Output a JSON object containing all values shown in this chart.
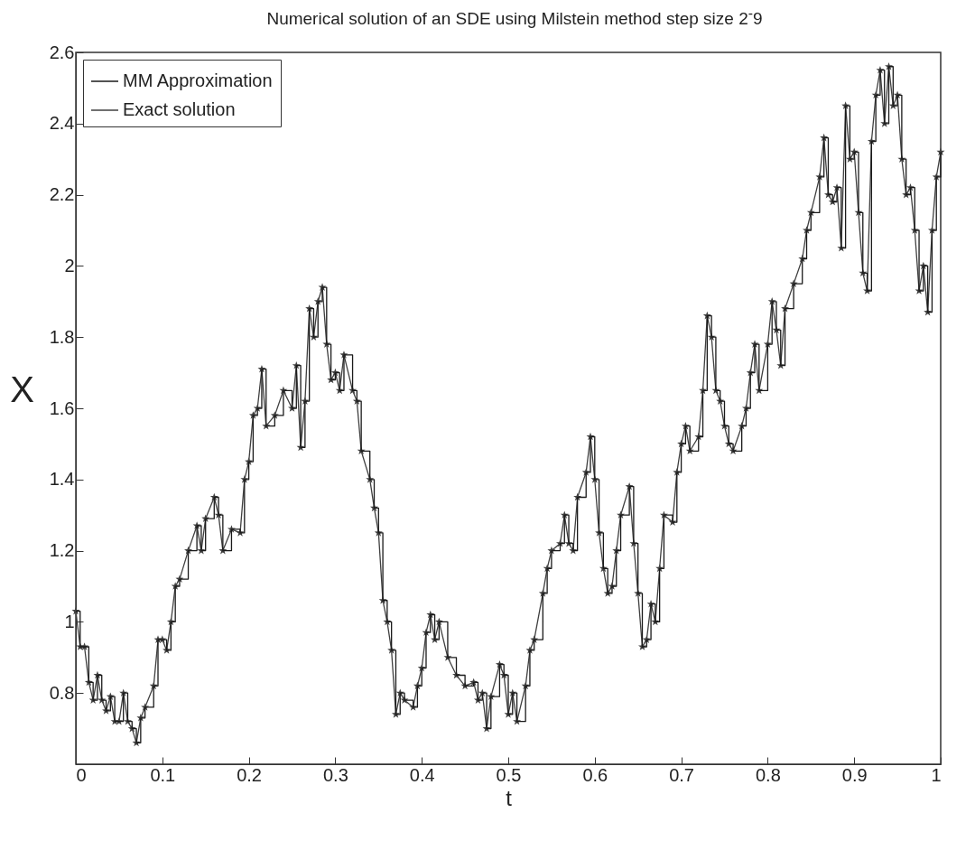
{
  "chart_data": {
    "type": "line",
    "title": "Numerical solution of an SDE using Milstein method step size 2$^{-}$9",
    "xlabel": "t",
    "ylabel": "X",
    "x": [
      0,
      0.005,
      0.01,
      0.015,
      0.02,
      0.025,
      0.03,
      0.035,
      0.04,
      0.045,
      0.05,
      0.055,
      0.06,
      0.065,
      0.07,
      0.075,
      0.08,
      0.09,
      0.095,
      0.1,
      0.105,
      0.11,
      0.115,
      0.12,
      0.13,
      0.14,
      0.145,
      0.15,
      0.16,
      0.165,
      0.17,
      0.18,
      0.19,
      0.195,
      0.2,
      0.205,
      0.21,
      0.215,
      0.22,
      0.23,
      0.24,
      0.25,
      0.255,
      0.26,
      0.265,
      0.27,
      0.275,
      0.28,
      0.285,
      0.29,
      0.295,
      0.3,
      0.305,
      0.31,
      0.32,
      0.325,
      0.33,
      0.34,
      0.345,
      0.35,
      0.355,
      0.36,
      0.365,
      0.37,
      0.375,
      0.38,
      0.39,
      0.395,
      0.4,
      0.405,
      0.41,
      0.415,
      0.42,
      0.43,
      0.44,
      0.45,
      0.46,
      0.465,
      0.47,
      0.475,
      0.48,
      0.49,
      0.495,
      0.5,
      0.505,
      0.51,
      0.52,
      0.525,
      0.53,
      0.54,
      0.545,
      0.55,
      0.56,
      0.565,
      0.57,
      0.575,
      0.58,
      0.59,
      0.595,
      0.6,
      0.605,
      0.61,
      0.615,
      0.62,
      0.625,
      0.63,
      0.64,
      0.645,
      0.65,
      0.655,
      0.66,
      0.665,
      0.67,
      0.675,
      0.68,
      0.69,
      0.695,
      0.7,
      0.705,
      0.71,
      0.72,
      0.725,
      0.73,
      0.735,
      0.74,
      0.745,
      0.75,
      0.755,
      0.76,
      0.77,
      0.775,
      0.78,
      0.785,
      0.79,
      0.8,
      0.805,
      0.81,
      0.815,
      0.82,
      0.83,
      0.84,
      0.845,
      0.85,
      0.86,
      0.865,
      0.87,
      0.875,
      0.88,
      0.885,
      0.89,
      0.895,
      0.9,
      0.905,
      0.91,
      0.915,
      0.92,
      0.925,
      0.93,
      0.935,
      0.94,
      0.945,
      0.95,
      0.955,
      0.96,
      0.965,
      0.97,
      0.975,
      0.98,
      0.985,
      0.99,
      0.995,
      1
    ],
    "series": [
      {
        "name": "MM Approximation",
        "type": "step",
        "color": "#1a1a1a",
        "marker": "none",
        "values": [
          1.03,
          0.93,
          0.93,
          0.83,
          0.78,
          0.85,
          0.78,
          0.75,
          0.79,
          0.72,
          0.72,
          0.8,
          0.72,
          0.7,
          0.66,
          0.73,
          0.76,
          0.82,
          0.95,
          0.95,
          0.92,
          1.0,
          1.1,
          1.12,
          1.2,
          1.27,
          1.2,
          1.29,
          1.35,
          1.3,
          1.2,
          1.26,
          1.25,
          1.4,
          1.45,
          1.58,
          1.6,
          1.71,
          1.55,
          1.58,
          1.65,
          1.6,
          1.72,
          1.49,
          1.62,
          1.88,
          1.8,
          1.9,
          1.94,
          1.78,
          1.68,
          1.7,
          1.65,
          1.75,
          1.65,
          1.62,
          1.48,
          1.4,
          1.32,
          1.25,
          1.06,
          1.0,
          0.92,
          0.74,
          0.8,
          0.78,
          0.76,
          0.82,
          0.87,
          0.97,
          1.02,
          0.95,
          1.0,
          0.9,
          0.85,
          0.82,
          0.83,
          0.78,
          0.8,
          0.7,
          0.79,
          0.88,
          0.85,
          0.74,
          0.8,
          0.72,
          0.82,
          0.92,
          0.95,
          1.08,
          1.15,
          1.2,
          1.22,
          1.3,
          1.22,
          1.2,
          1.35,
          1.42,
          1.52,
          1.4,
          1.25,
          1.15,
          1.08,
          1.1,
          1.2,
          1.3,
          1.38,
          1.22,
          1.08,
          0.93,
          0.95,
          1.05,
          1.0,
          1.15,
          1.3,
          1.28,
          1.42,
          1.5,
          1.55,
          1.48,
          1.52,
          1.65,
          1.86,
          1.8,
          1.65,
          1.62,
          1.55,
          1.5,
          1.48,
          1.55,
          1.6,
          1.7,
          1.78,
          1.65,
          1.78,
          1.9,
          1.82,
          1.72,
          1.88,
          1.95,
          2.02,
          2.1,
          2.15,
          2.25,
          2.36,
          2.2,
          2.18,
          2.22,
          2.05,
          2.45,
          2.3,
          2.32,
          2.15,
          1.98,
          1.93,
          2.35,
          2.48,
          2.55,
          2.4,
          2.56,
          2.45,
          2.48,
          2.3,
          2.2,
          2.22,
          2.1,
          1.93,
          2.0,
          1.87,
          2.1,
          2.25,
          2.32
        ]
      },
      {
        "name": "Exact solution",
        "color": "#404040",
        "marker": "star",
        "values": [
          1.03,
          0.93,
          0.93,
          0.83,
          0.78,
          0.85,
          0.78,
          0.75,
          0.79,
          0.72,
          0.72,
          0.8,
          0.72,
          0.7,
          0.66,
          0.73,
          0.76,
          0.82,
          0.95,
          0.95,
          0.92,
          1.0,
          1.1,
          1.12,
          1.2,
          1.27,
          1.2,
          1.29,
          1.35,
          1.3,
          1.2,
          1.26,
          1.25,
          1.4,
          1.45,
          1.58,
          1.6,
          1.71,
          1.55,
          1.58,
          1.65,
          1.6,
          1.72,
          1.49,
          1.62,
          1.88,
          1.8,
          1.9,
          1.94,
          1.78,
          1.68,
          1.7,
          1.65,
          1.75,
          1.65,
          1.62,
          1.48,
          1.4,
          1.32,
          1.25,
          1.06,
          1.0,
          0.92,
          0.74,
          0.8,
          0.78,
          0.76,
          0.82,
          0.87,
          0.97,
          1.02,
          0.95,
          1.0,
          0.9,
          0.85,
          0.82,
          0.83,
          0.78,
          0.8,
          0.7,
          0.79,
          0.88,
          0.85,
          0.74,
          0.8,
          0.72,
          0.82,
          0.92,
          0.95,
          1.08,
          1.15,
          1.2,
          1.22,
          1.3,
          1.22,
          1.2,
          1.35,
          1.42,
          1.52,
          1.4,
          1.25,
          1.15,
          1.08,
          1.1,
          1.2,
          1.3,
          1.38,
          1.22,
          1.08,
          0.93,
          0.95,
          1.05,
          1.0,
          1.15,
          1.3,
          1.28,
          1.42,
          1.5,
          1.55,
          1.48,
          1.52,
          1.65,
          1.86,
          1.8,
          1.65,
          1.62,
          1.55,
          1.5,
          1.48,
          1.55,
          1.6,
          1.7,
          1.78,
          1.65,
          1.78,
          1.9,
          1.82,
          1.72,
          1.88,
          1.95,
          2.02,
          2.1,
          2.15,
          2.25,
          2.36,
          2.2,
          2.18,
          2.22,
          2.05,
          2.45,
          2.3,
          2.32,
          2.15,
          1.98,
          1.93,
          2.35,
          2.48,
          2.55,
          2.4,
          2.56,
          2.45,
          2.48,
          2.3,
          2.2,
          2.22,
          2.1,
          1.93,
          2.0,
          1.87,
          2.1,
          2.25,
          2.32
        ]
      }
    ],
    "xlim": [
      0,
      1
    ],
    "xticks": [
      0,
      0.1,
      0.2,
      0.3,
      0.4,
      0.5,
      0.6,
      0.7,
      0.8,
      0.9,
      1
    ],
    "ylim": [
      0.6,
      2.6
    ],
    "yticks": [
      0.8,
      1,
      1.2,
      1.4,
      1.6,
      1.8,
      2,
      2.2,
      2.4,
      2.6
    ],
    "grid": false,
    "legend": "top left",
    "line_style": "solid"
  }
}
